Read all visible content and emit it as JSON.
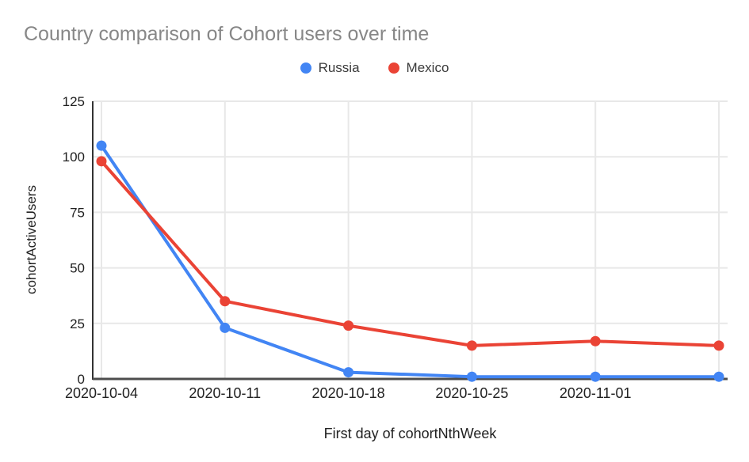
{
  "chart": {
    "title": "Country comparison of Cohort users over time",
    "y_axis_title": "cohortActiveUsers",
    "x_axis_title": "First day of cohortNthWeek",
    "legend": [
      {
        "label": "Russia",
        "color": "#4285F4"
      },
      {
        "label": "Mexico",
        "color": "#EA4335"
      }
    ]
  },
  "chart_data": {
    "type": "line",
    "title": "Country comparison of Cohort users over time",
    "xlabel": "First day of cohortNthWeek",
    "ylabel": "cohortActiveUsers",
    "categories": [
      "2020-10-04",
      "2020-10-11",
      "2020-10-18",
      "2020-10-25",
      "2020-11-01",
      ""
    ],
    "series": [
      {
        "name": "Russia",
        "color": "#4285F4",
        "values": [
          105,
          23,
          3,
          1,
          1,
          1
        ]
      },
      {
        "name": "Mexico",
        "color": "#EA4335",
        "values": [
          98,
          35,
          24,
          15,
          17,
          15
        ]
      }
    ],
    "ylim": [
      0,
      125
    ],
    "yticks": [
      0,
      25,
      50,
      75,
      100,
      125
    ],
    "grid": true,
    "legend_position": "top"
  },
  "colors": {
    "background": "#ffffff",
    "title_text": "#878787",
    "tick_text": "#212121",
    "gridline": "#e8e8e8",
    "y_axis_line": "#333333",
    "x_baseline": "#4d4d4d"
  }
}
